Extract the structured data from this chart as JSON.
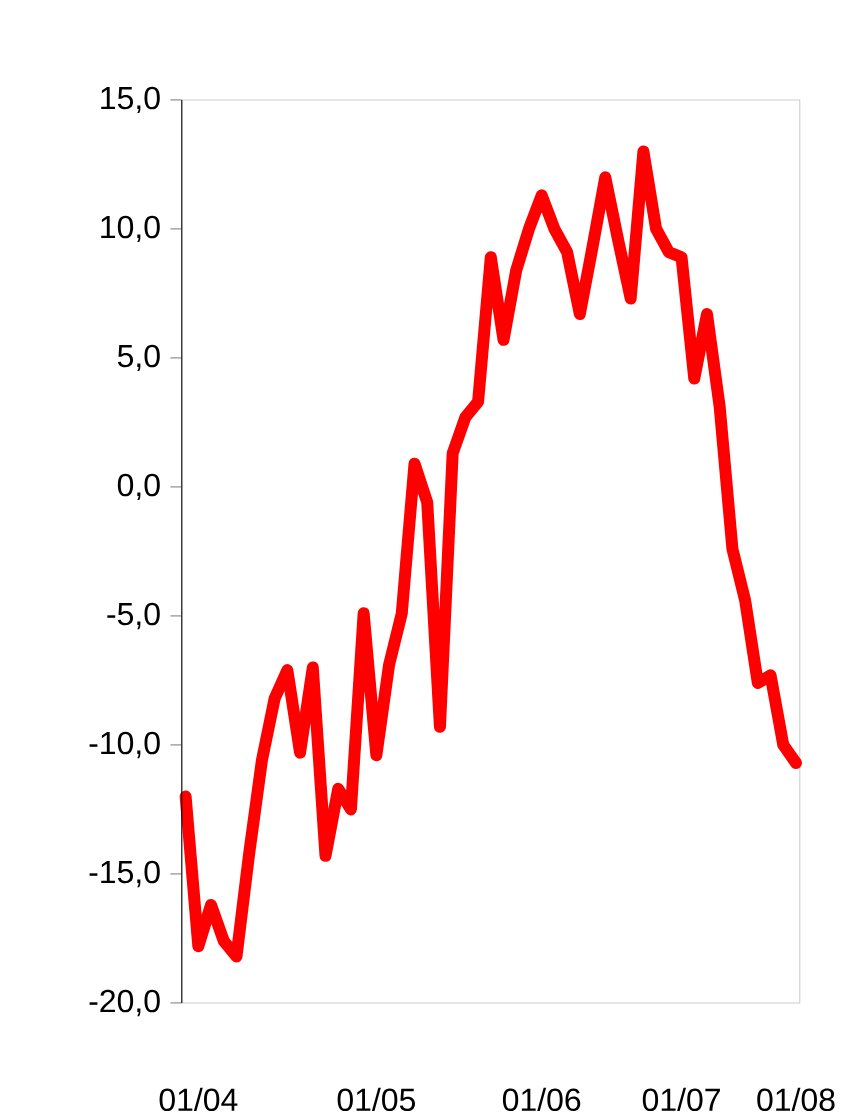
{
  "chart_data": {
    "type": "line",
    "categories": [
      null,
      "01/04",
      null,
      null,
      null,
      null,
      null,
      null,
      null,
      null,
      null,
      null,
      null,
      null,
      null,
      "01/05",
      null,
      null,
      null,
      null,
      null,
      null,
      null,
      null,
      null,
      null,
      null,
      null,
      "01/06",
      null,
      null,
      null,
      null,
      null,
      null,
      null,
      null,
      null,
      null,
      "01/07",
      null,
      null,
      null,
      null,
      null,
      null,
      null,
      null,
      "01/08"
    ],
    "series": [
      {
        "color": "#ff0000",
        "values": [
          -12.0,
          -17.8,
          -16.2,
          -17.6,
          -18.2,
          -14.2,
          -10.6,
          -8.2,
          -7.1,
          -10.3,
          -7.0,
          -14.3,
          -11.7,
          -12.5,
          -4.9,
          -10.4,
          -6.9,
          -4.9,
          0.9,
          -0.6,
          -9.3,
          1.3,
          2.7,
          3.3,
          8.9,
          5.7,
          8.4,
          10.0,
          11.3,
          10.0,
          9.1,
          6.7,
          9.3,
          12.0,
          9.6,
          7.3,
          13.0,
          10.0,
          9.1,
          8.9,
          4.2,
          6.7,
          3.1,
          -2.4,
          -4.4,
          -7.6,
          -7.3,
          -10.0,
          -10.7
        ]
      }
    ],
    "ylim": [
      -20,
      15
    ],
    "yticks": [
      {
        "value": -20,
        "label": "-20,0"
      },
      {
        "value": -15,
        "label": "-15,0"
      },
      {
        "value": -10,
        "label": "-10,0"
      },
      {
        "value": -5,
        "label": "-5,0"
      },
      {
        "value": 0,
        "label": "0,0"
      },
      {
        "value": 5,
        "label": "5,0"
      },
      {
        "value": 10,
        "label": "10,0"
      },
      {
        "value": 15,
        "label": "15,0"
      }
    ],
    "marker": "none",
    "line_style": "solid"
  }
}
